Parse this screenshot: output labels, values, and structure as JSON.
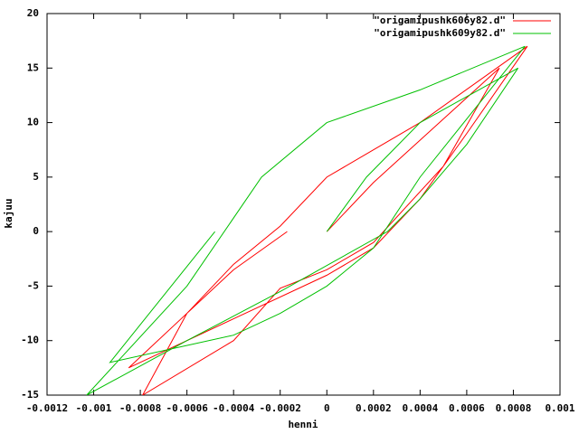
{
  "chart_data": {
    "type": "line",
    "x_label": "henni",
    "y_label": "kajuu",
    "xlim": [
      -0.0012,
      0.001
    ],
    "ylim": [
      -15,
      20
    ],
    "xticks": [
      -0.0012,
      -0.001,
      -0.0008,
      -0.0006,
      -0.0004,
      -0.0002,
      0,
      0.0002,
      0.0004,
      0.0006,
      0.0008,
      0.001
    ],
    "yticks": [
      -15,
      -10,
      -5,
      0,
      5,
      10,
      15,
      20
    ],
    "legend": "top-right",
    "series": [
      {
        "name": "\"origamipushk606y82.d\"",
        "color": "#ff0000",
        "x": [
          0,
          0.0002,
          0.00074,
          0.0005,
          0.0002,
          0,
          -0.0002,
          -0.0004,
          -0.00079,
          -0.0006,
          -0.0004,
          -0.00017,
          null,
          -0.00085,
          -0.0006,
          -0.0004,
          -0.0002,
          0,
          0.0002,
          0.0004,
          0.00086,
          0.0006,
          0.0004,
          0.0002,
          0,
          -0.0004,
          -0.00085
        ],
        "values": [
          0,
          4.5,
          15,
          6,
          -1,
          -3.5,
          -5.2,
          -10,
          -15,
          -7.5,
          -3.5,
          0,
          null,
          -12.5,
          -7.5,
          -3,
          0.5,
          5,
          7.5,
          10,
          17,
          9,
          3,
          -1.5,
          -4,
          -8,
          -12.5
        ]
      },
      {
        "name": "\"origamipushk609y82.d\"",
        "color": "#00c000",
        "x": [
          0,
          0.00017,
          0.0004,
          0.00082,
          0.0006,
          0.0004,
          0.00026,
          -0.0002,
          -0.0006,
          -0.00103,
          -0.0006,
          -0.00028,
          0,
          0.0004,
          0.00085,
          0.0007,
          0.0004,
          0.0002,
          0,
          -0.0002,
          -0.0004,
          -0.00093,
          -0.00048
        ],
        "values": [
          0,
          5,
          10,
          15,
          8,
          3,
          0,
          -5.5,
          -10,
          -15,
          -5,
          5,
          10,
          13,
          17,
          13,
          5,
          -1.5,
          -5,
          -7.5,
          -9.5,
          -12,
          0
        ]
      }
    ]
  }
}
